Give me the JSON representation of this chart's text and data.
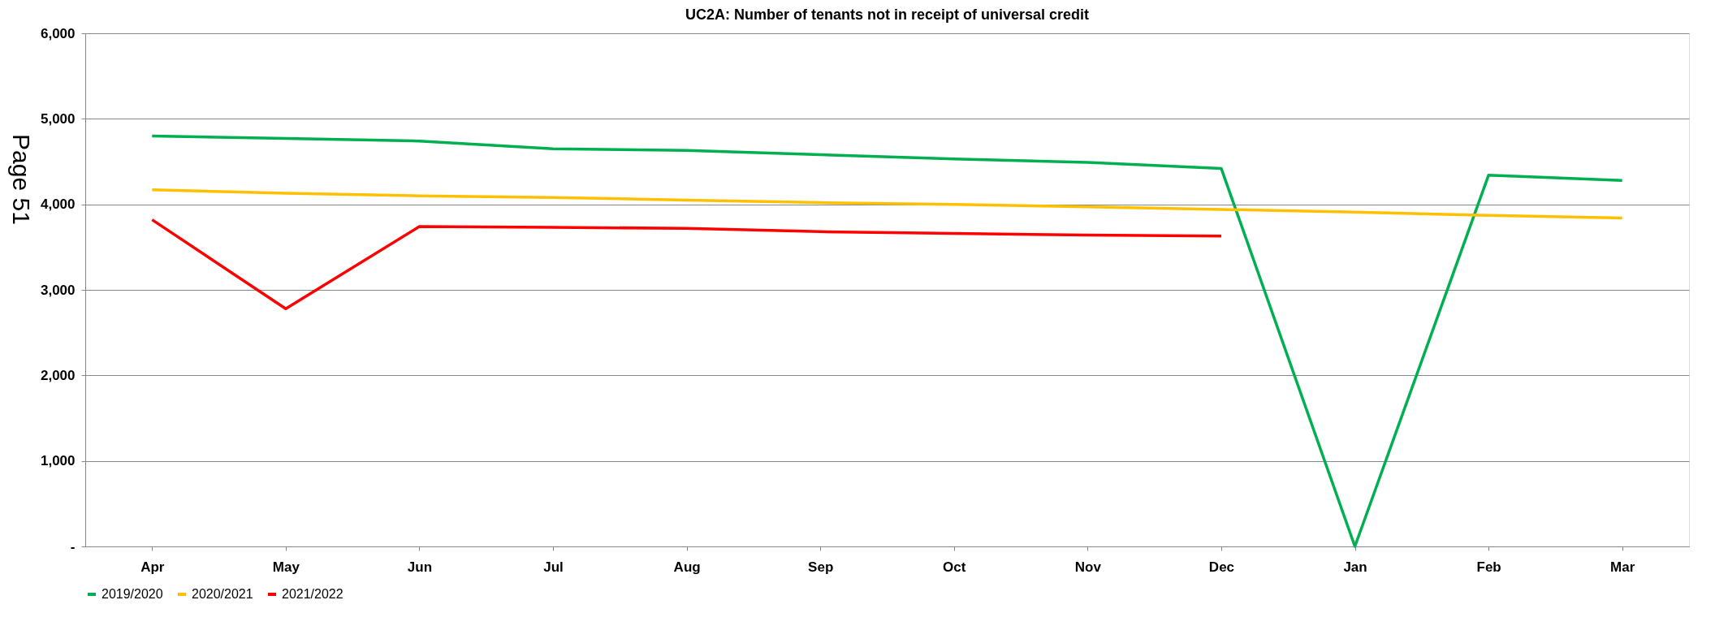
{
  "chart_data": {
    "type": "line",
    "title": "UC2A: Number of tenants not in receipt of universal credit",
    "categories": [
      "Apr",
      "May",
      "Jun",
      "Jul",
      "Aug",
      "Sep",
      "Oct",
      "Nov",
      "Dec",
      "Jan",
      "Feb",
      "Mar"
    ],
    "series": [
      {
        "name": "2019/2020",
        "color": "#00b050",
        "values": [
          4800,
          4770,
          4740,
          4650,
          4630,
          4580,
          4530,
          4490,
          4420,
          0,
          4340,
          4280
        ]
      },
      {
        "name": "2020/2021",
        "color": "#ffc000",
        "values": [
          4170,
          4130,
          4100,
          4080,
          4050,
          4020,
          4000,
          3970,
          3940,
          3910,
          3870,
          3840
        ]
      },
      {
        "name": "2021/2022",
        "color": "#ff0000",
        "values": [
          3820,
          2780,
          3740,
          3730,
          3720,
          3680,
          3660,
          3640,
          3630,
          null,
          null,
          null
        ]
      }
    ],
    "ylim": [
      0,
      6000
    ],
    "yticks": [
      {
        "value": 0,
        "label": "-"
      },
      {
        "value": 1000,
        "label": "1,000"
      },
      {
        "value": 2000,
        "label": "2,000"
      },
      {
        "value": 3000,
        "label": "3,000"
      },
      {
        "value": 4000,
        "label": "4,000"
      },
      {
        "value": 5000,
        "label": "5,000"
      },
      {
        "value": 6000,
        "label": "6,000"
      }
    ],
    "grid": "y",
    "legend": "bottom",
    "marker": "none",
    "line_style": "solid",
    "annotations": [
      "Page 51"
    ]
  }
}
